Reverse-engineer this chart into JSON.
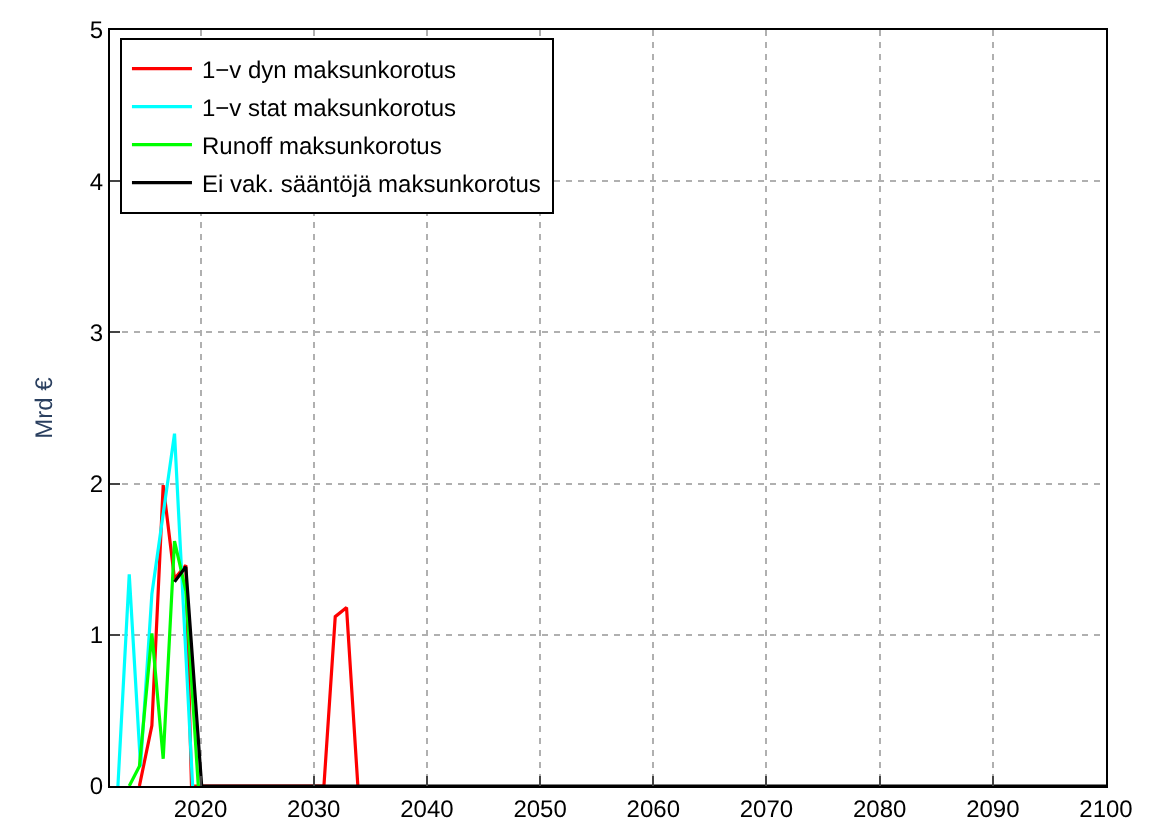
{
  "chart_data": {
    "type": "line",
    "ylabel": "Mrd €",
    "xlim": [
      2012,
      2100
    ],
    "ylim": [
      0,
      5
    ],
    "xticks": [
      2020,
      2030,
      2040,
      2050,
      2060,
      2070,
      2080,
      2090,
      2100
    ],
    "yticks": [
      0,
      1,
      2,
      3,
      4,
      5
    ],
    "grid": true,
    "legend": "top left",
    "marker": "none",
    "line_style": "solid",
    "series": [
      {
        "name": "1−v dyn maksunkorotus",
        "color": "#ff0000",
        "x": [
          2014.6,
          2015.7,
          2016.7,
          2017.7,
          2018.7,
          2019.2,
          2030.9,
          2031.9,
          2032.9,
          2033.9
        ],
        "values": [
          0,
          0.4,
          1.99,
          1.37,
          1.46,
          0,
          0,
          1.12,
          1.18,
          0
        ]
      },
      {
        "name": "1−v stat maksunkorotus",
        "color": "#00ffff",
        "x": [
          2012.7,
          2013.7,
          2014.7,
          2015.7,
          2017.7,
          2019.3
        ],
        "values": [
          0,
          1.4,
          0.13,
          1.27,
          2.33,
          0
        ]
      },
      {
        "name": "Runoff maksunkorotus",
        "color": "#00ff00",
        "x": [
          2013.7,
          2014.6,
          2015.7,
          2016.7,
          2017.7,
          2018.7,
          2019.8
        ],
        "values": [
          0,
          0.13,
          1.01,
          0.18,
          1.62,
          1.29,
          0
        ]
      },
      {
        "name": "Ei vak. sääntöjä maksunkorotus",
        "color": "#000000",
        "x": [
          2017.7,
          2018.7,
          2020.1,
          2100
        ],
        "values": [
          1.35,
          1.45,
          0,
          0
        ]
      }
    ]
  }
}
